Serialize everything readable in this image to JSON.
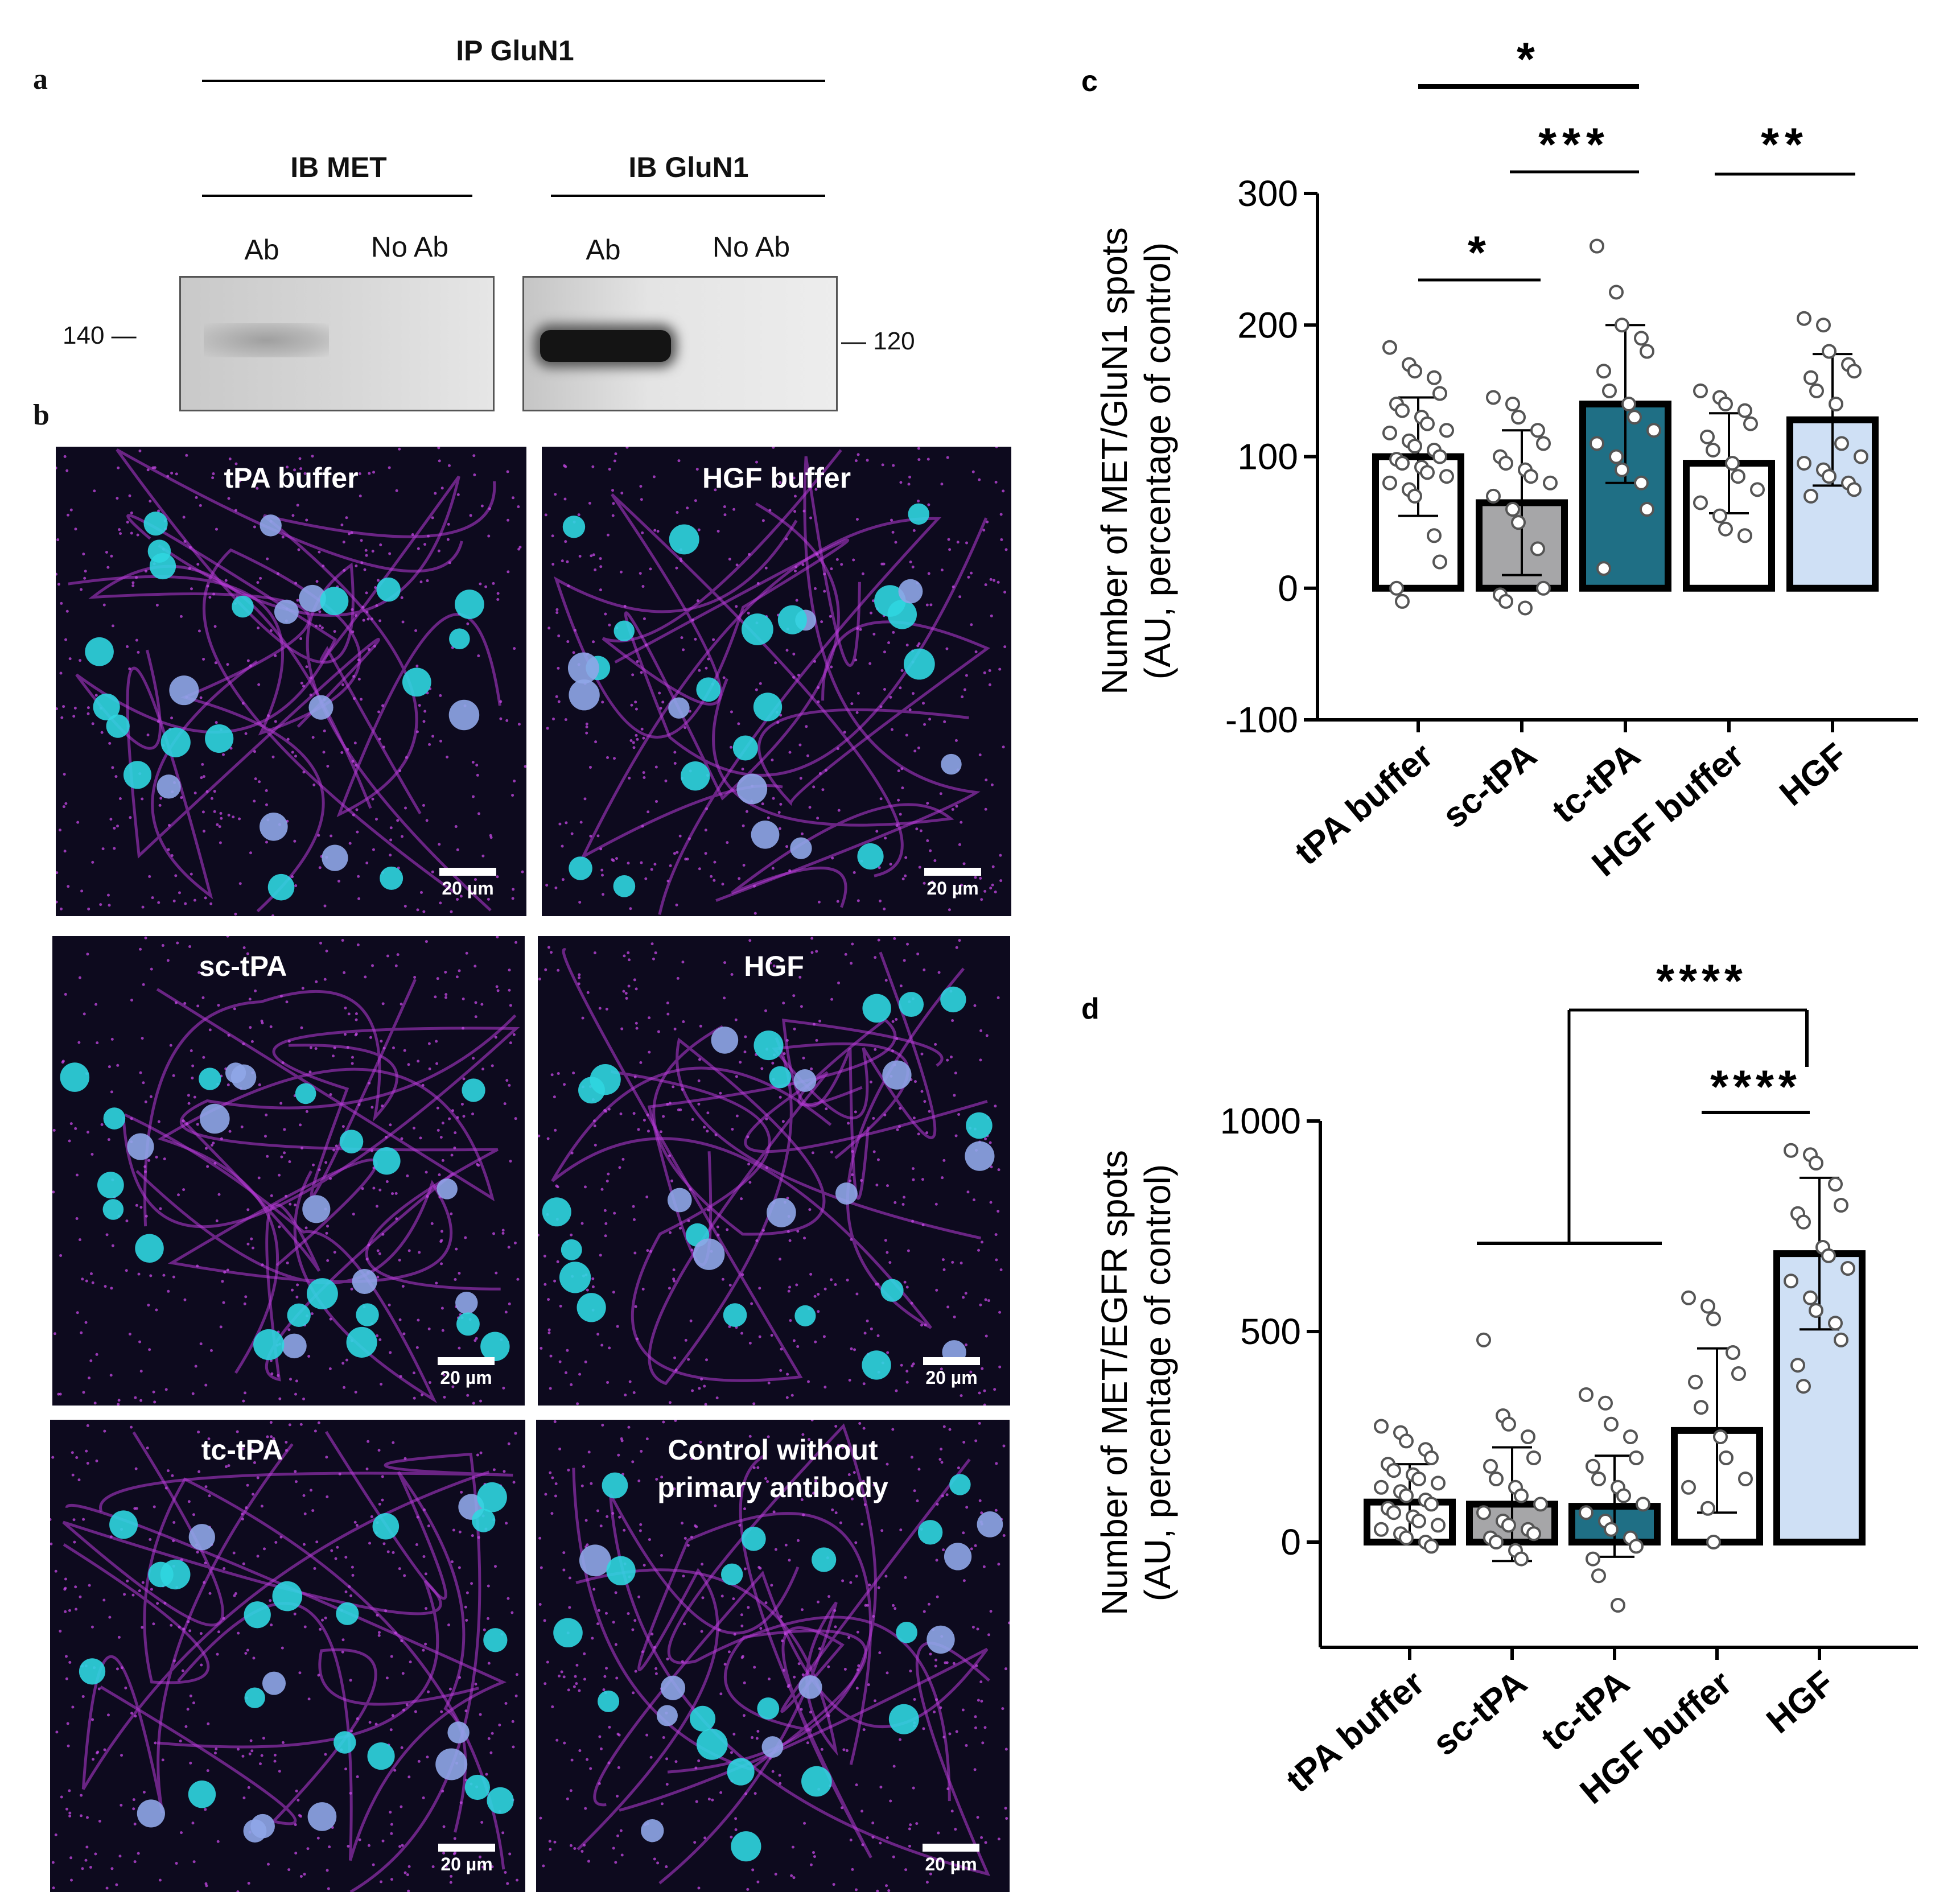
{
  "panel_a": {
    "letter": "a",
    "ip_label": "IP GluN1",
    "left_header": "IB MET",
    "right_header": "IB GluN1",
    "left_lanes": [
      "Ab",
      "No Ab"
    ],
    "right_lanes": [
      "Ab",
      "No Ab"
    ],
    "mw_left": "140",
    "mw_right": "120"
  },
  "panel_b": {
    "letter": "b",
    "images": [
      {
        "label": "tPA buffer",
        "scale": "20 µm"
      },
      {
        "label": "HGF  buffer",
        "scale": "20 µm"
      },
      {
        "label": "sc-tPA",
        "scale": "20 µm"
      },
      {
        "label": "HGF",
        "scale": "20 µm"
      },
      {
        "label": "tc-tPA",
        "scale": "20 µm"
      },
      {
        "label": "Control  without",
        "label2": "primary antibody",
        "scale": "20 µm"
      }
    ]
  },
  "chart_data": [
    {
      "panel": "c",
      "type": "bar",
      "ylabel": "Number of MET/GluN1 spots",
      "ylabel2": "(AU, percentage of control)",
      "ylim": [
        -100,
        300
      ],
      "yticks": [
        "300",
        "200",
        "100",
        "0",
        "-100"
      ],
      "categories": [
        "tPA buffer",
        "sc-tPA",
        "tc-tPA",
        "HGF buffer",
        "HGF"
      ],
      "values": [
        100,
        65,
        140,
        95,
        128
      ],
      "errors": [
        45,
        55,
        60,
        38,
        50
      ],
      "colors": [
        "#ffffff",
        "#a6a6a8",
        "#1f6f85",
        "#ffffff",
        "#cfe0f5"
      ],
      "points": [
        [
          183,
          170,
          165,
          160,
          148,
          140,
          135,
          130,
          125,
          120,
          118,
          112,
          108,
          105,
          100,
          98,
          95,
          92,
          88,
          85,
          80,
          75,
          70,
          40,
          20,
          0,
          -10
        ],
        [
          145,
          140,
          130,
          120,
          110,
          100,
          95,
          90,
          85,
          80,
          70,
          60,
          50,
          30,
          0,
          -5,
          -10,
          -15
        ],
        [
          260,
          225,
          200,
          190,
          180,
          165,
          150,
          140,
          130,
          120,
          110,
          100,
          90,
          80,
          60,
          15
        ],
        [
          150,
          145,
          140,
          135,
          125,
          115,
          105,
          95,
          85,
          75,
          65,
          55,
          45,
          40
        ],
        [
          205,
          200,
          180,
          170,
          165,
          160,
          150,
          140,
          110,
          100,
          95,
          90,
          85,
          80,
          75,
          70
        ]
      ],
      "sig": [
        {
          "stars": "*",
          "from": 0,
          "to": 2,
          "level": 1
        },
        {
          "stars": "***",
          "from": 1,
          "to": 2,
          "level": 2
        },
        {
          "stars": "*",
          "from": 0,
          "to": 1,
          "level": 4
        },
        {
          "stars": "**",
          "from": 3,
          "to": 4,
          "level": 2
        }
      ]
    },
    {
      "panel": "d",
      "type": "bar",
      "ylabel": "Number of MET/EGFR spots",
      "ylabel2": "(AU, percentage of control)",
      "ylim": [
        -250,
        1000
      ],
      "yticks": [
        "1000",
        "500",
        "0"
      ],
      "categories": [
        "tPA buffer",
        "sc-tPA",
        "tc-tPA",
        "HGF buffer",
        "HGF"
      ],
      "values": [
        95,
        90,
        85,
        265,
        685
      ],
      "errors": [
        90,
        135,
        120,
        195,
        180
      ],
      "colors": [
        "#ffffff",
        "#a6a6a8",
        "#1f6f85",
        "#ffffff",
        "#cfe0f5"
      ],
      "points": [
        [
          275,
          260,
          240,
          220,
          200,
          185,
          170,
          160,
          150,
          140,
          130,
          120,
          110,
          100,
          90,
          80,
          70,
          60,
          50,
          40,
          30,
          20,
          10,
          0,
          -10
        ],
        [
          480,
          300,
          280,
          250,
          200,
          180,
          150,
          130,
          110,
          90,
          70,
          50,
          40,
          30,
          20,
          10,
          0,
          -20,
          -40
        ],
        [
          350,
          330,
          280,
          250,
          200,
          180,
          150,
          130,
          110,
          90,
          70,
          50,
          30,
          10,
          -10,
          -40,
          -80,
          -150
        ],
        [
          580,
          560,
          530,
          450,
          400,
          380,
          320,
          250,
          200,
          150,
          130,
          80,
          0
        ],
        [
          930,
          920,
          900,
          850,
          800,
          780,
          760,
          700,
          680,
          650,
          620,
          580,
          550,
          520,
          480,
          420,
          370
        ]
      ],
      "sig": [
        {
          "stars": "****",
          "from": 3,
          "to": 4,
          "level": 1
        },
        {
          "stars": "****",
          "from": "0-2",
          "to": 4,
          "level": 2
        }
      ]
    }
  ]
}
